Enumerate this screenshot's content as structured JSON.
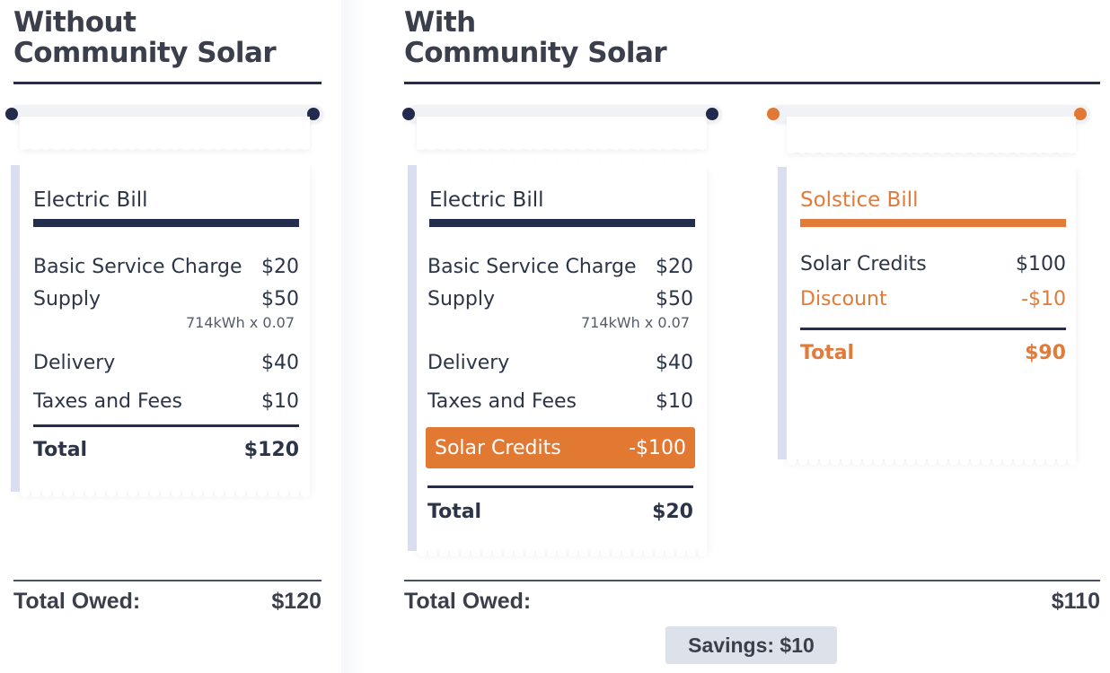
{
  "without": {
    "title": "Without\nCommunity Solar",
    "bill": {
      "title": "Electric Bill",
      "basic_service": {
        "label": "Basic Service Charge",
        "amount": "$20"
      },
      "supply": {
        "label": "Supply",
        "amount": "$50",
        "detail": "714kWh x 0.07"
      },
      "delivery": {
        "label": "Delivery",
        "amount": "$40"
      },
      "taxes": {
        "label": "Taxes and Fees",
        "amount": "$10"
      },
      "total": {
        "label": "Total",
        "amount": "$120"
      }
    },
    "total_owed": {
      "label": "Total Owed:",
      "amount": "$120"
    }
  },
  "with": {
    "title": "With\nCommunity Solar",
    "electric_bill": {
      "title": "Electric Bill",
      "basic_service": {
        "label": "Basic Service Charge",
        "amount": "$20"
      },
      "supply": {
        "label": "Supply",
        "amount": "$50",
        "detail": "714kWh x 0.07"
      },
      "delivery": {
        "label": "Delivery",
        "amount": "$40"
      },
      "taxes": {
        "label": "Taxes and Fees",
        "amount": "$10"
      },
      "solar_credits": {
        "label": "Solar Credits",
        "amount": "-$100"
      },
      "total": {
        "label": "Total",
        "amount": "$20"
      }
    },
    "solstice_bill": {
      "title": "Solstice Bill",
      "solar_credits": {
        "label": "Solar Credits",
        "amount": "$100"
      },
      "discount": {
        "label": "Discount",
        "amount": "-$10"
      },
      "total": {
        "label": "Total",
        "amount": "$90"
      }
    },
    "total_owed": {
      "label": "Total Owed:",
      "amount": "$110"
    },
    "savings": "Savings: $10"
  },
  "colors": {
    "navy": "#252d4f",
    "orange": "#e27b3a",
    "text": "#2c3547",
    "savings_bg": "#dde1ea"
  }
}
